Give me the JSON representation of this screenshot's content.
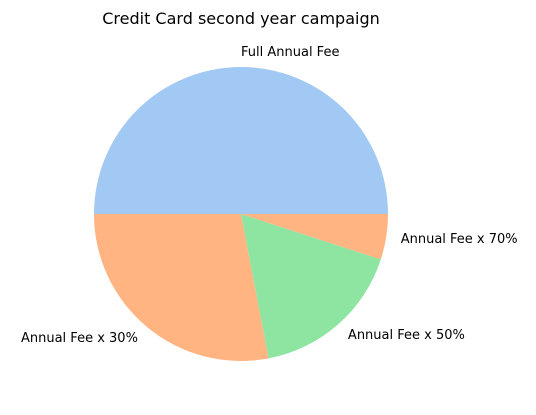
{
  "chart_data": {
    "type": "pie",
    "title": "Credit Card second year campaign",
    "categories": [
      "Full Annual Fee",
      "Annual Fee x 30%",
      "Annual Fee x 50%",
      "Annual Fee x 70%"
    ],
    "values": [
      50,
      28,
      17,
      5
    ],
    "unit": "%",
    "start_angle_deg": 0,
    "direction": "counterclockwise",
    "colors": [
      "#a1c9f4",
      "#ffb482",
      "#8de5a1",
      "#ffb482"
    ],
    "legend": "none"
  }
}
